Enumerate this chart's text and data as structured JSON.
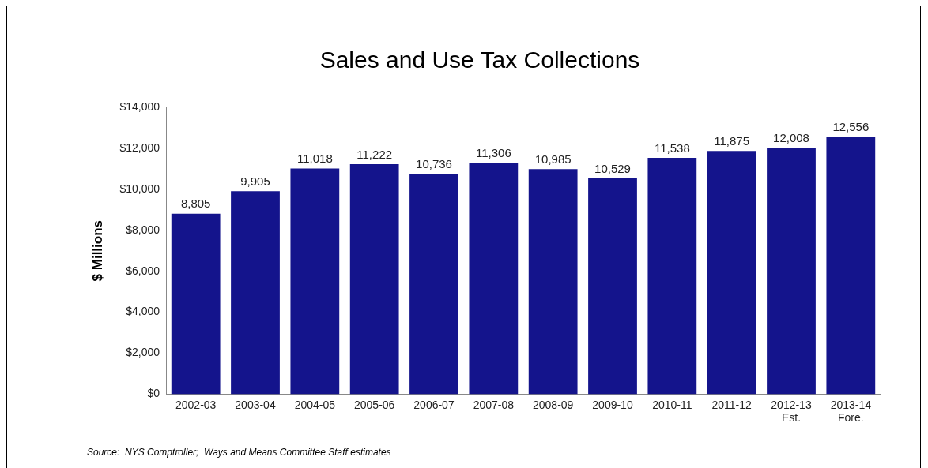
{
  "chart_data": {
    "type": "bar",
    "title": "Sales and Use Tax Collections",
    "ylabel": "$ Millions",
    "categories": [
      "2002-03",
      "2003-04",
      "2004-05",
      "2005-06",
      "2006-07",
      "2007-08",
      "2008-09",
      "2009-10",
      "2010-11",
      "2011-12",
      "2012-13\nEst.",
      "2013-14\nFore."
    ],
    "values": [
      8805,
      9905,
      11018,
      11222,
      10736,
      11306,
      10985,
      10529,
      11538,
      11875,
      12008,
      12556
    ],
    "value_labels": [
      "8,805",
      "9,905",
      "11,018",
      "11,222",
      "10,736",
      "11,306",
      "10,985",
      "10,529",
      "11,538",
      "11,875",
      "12,008",
      "12,556"
    ],
    "color": "#14148c",
    "grid": false,
    "legend": false,
    "ylim": [
      0,
      14000
    ],
    "yticks": [
      {
        "value": 0,
        "label": "$0"
      },
      {
        "value": 2000,
        "label": "$2,000"
      },
      {
        "value": 4000,
        "label": "$4,000"
      },
      {
        "value": 6000,
        "label": "$6,000"
      },
      {
        "value": 8000,
        "label": "$8,000"
      },
      {
        "value": 10000,
        "label": "$10,000"
      },
      {
        "value": 12000,
        "label": "$12,000"
      },
      {
        "value": 14000,
        "label": "$14,000"
      }
    ],
    "annotations": [
      "Source:  NYS Comptroller;  Ways and Means Committee Staff estimates"
    ]
  }
}
